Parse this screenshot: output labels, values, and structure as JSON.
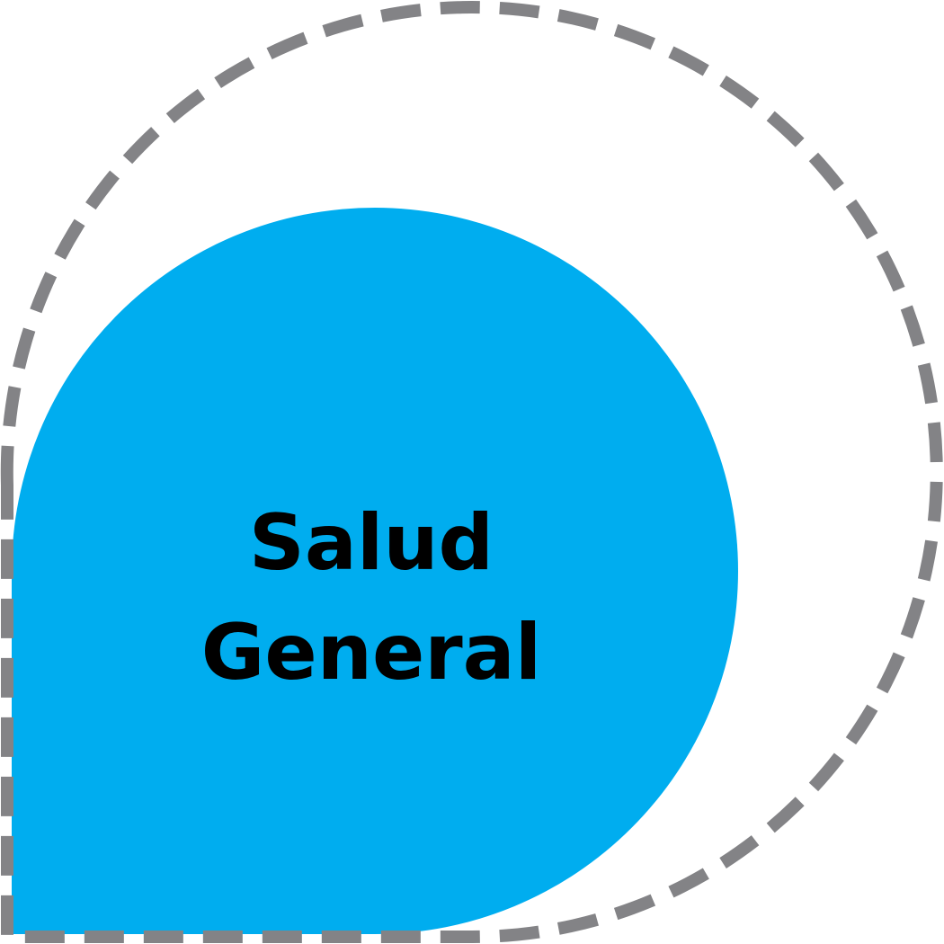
{
  "diagram": {
    "label_line1": "Salud",
    "label_line2": "General",
    "colors": {
      "fill": "#00adef",
      "dash": "#838386",
      "text": "#000000",
      "background": "#ffffff"
    }
  }
}
